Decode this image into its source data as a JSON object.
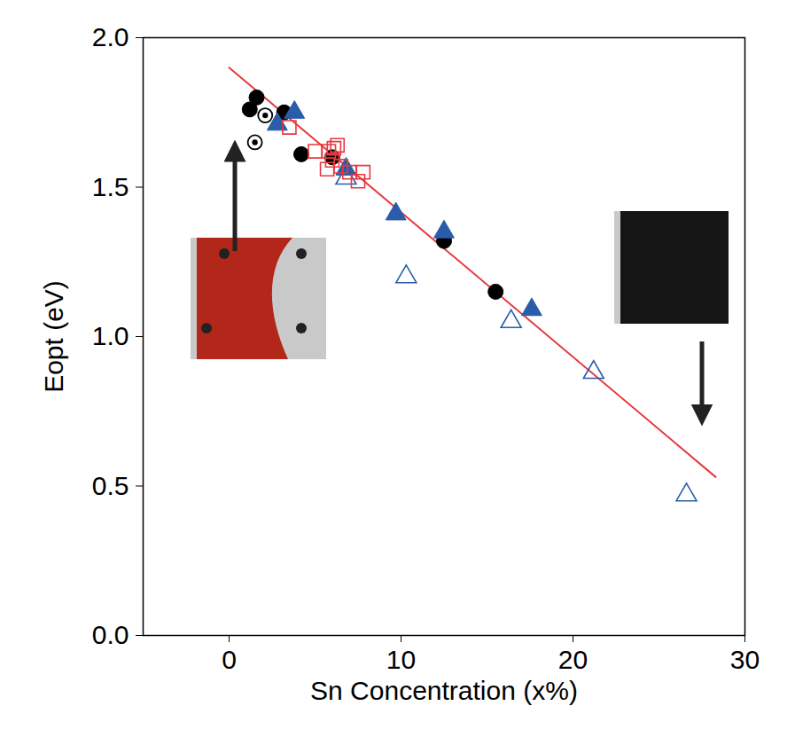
{
  "chart_data": {
    "type": "scatter",
    "x_label": "Sn Concentration (x%)",
    "y_label": "Eopt (eV)",
    "xlim": [
      -5,
      30
    ],
    "xticks": [
      0,
      10,
      20,
      30
    ],
    "ylim": [
      0,
      2.0
    ],
    "yticks": [
      {
        "value": 0,
        "label": "0.0"
      },
      {
        "value": 0.5,
        "label": "0.5"
      },
      {
        "value": 1.0,
        "label": "1.0"
      },
      {
        "value": 1.5,
        "label": "1.5"
      },
      {
        "value": 2.0,
        "label": "2.0"
      }
    ],
    "series": [
      {
        "type": "line",
        "color": "#e8383d",
        "line_style": "solid",
        "x": [
          0,
          28.3
        ],
        "values": [
          1.9,
          0.53
        ]
      },
      {
        "type": "scatter",
        "color": "#000000",
        "marker": "circle",
        "x": [
          1.2,
          1.6,
          3.2,
          4.2,
          6.0,
          12.5,
          15.5
        ],
        "values": [
          1.76,
          1.8,
          1.75,
          1.61,
          1.6,
          1.32,
          1.15
        ]
      },
      {
        "type": "scatter",
        "color": "#000000",
        "marker": "bullseye",
        "x": [
          1.5,
          2.1
        ],
        "values": [
          1.65,
          1.74
        ]
      },
      {
        "type": "scatter",
        "color": "#2a5caa",
        "marker": "triangle",
        "x": [
          2.8,
          3.8,
          6.8,
          9.7,
          12.5,
          17.6
        ],
        "values": [
          1.71,
          1.75,
          1.56,
          1.41,
          1.35,
          1.09
        ]
      },
      {
        "type": "scatter",
        "color": "#2a5caa",
        "marker": "triangle-open",
        "x": [
          6.8,
          10.3,
          16.4,
          21.2,
          26.6
        ],
        "values": [
          1.53,
          1.2,
          1.05,
          0.88,
          0.47
        ]
      },
      {
        "type": "scatter",
        "color": "#e8383d",
        "marker": "square-open",
        "x": [
          3.5,
          5.0,
          5.7,
          5.8,
          6.0,
          6.1,
          6.3,
          6.5,
          7.0,
          7.5,
          7.8
        ],
        "values": [
          1.7,
          1.62,
          1.56,
          1.62,
          1.59,
          1.63,
          1.64,
          1.57,
          1.55,
          1.52,
          1.55
        ]
      }
    ]
  }
}
